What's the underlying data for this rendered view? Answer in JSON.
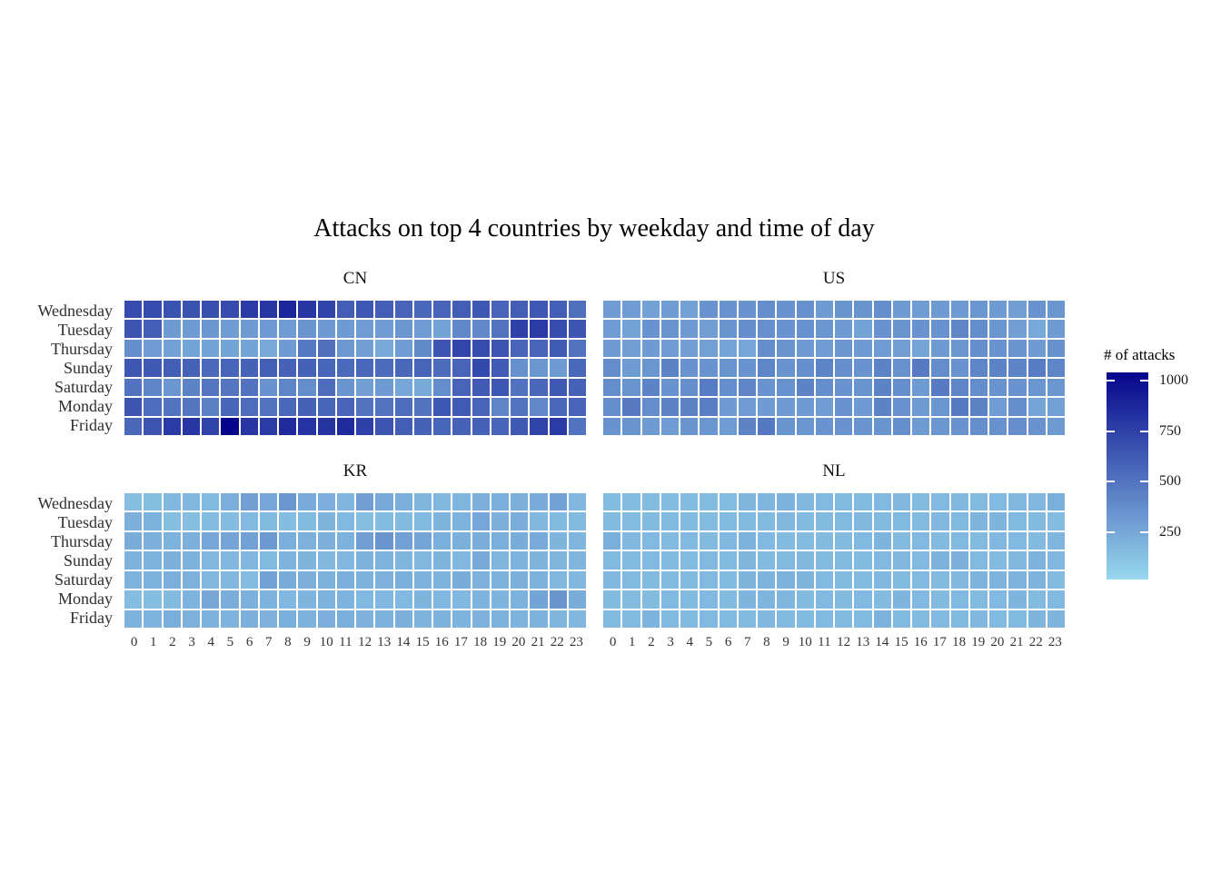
{
  "title": "Attacks on top 4 countries by weekday and time of day",
  "chart_data": {
    "type": "heatmap",
    "title": "Attacks on top 4 countries by weekday and time of day",
    "rows": [
      "Wednesday",
      "Tuesday",
      "Thursday",
      "Sunday",
      "Saturday",
      "Monday",
      "Friday"
    ],
    "columns": [
      "0",
      "1",
      "2",
      "3",
      "4",
      "5",
      "6",
      "7",
      "8",
      "9",
      "10",
      "11",
      "12",
      "13",
      "14",
      "15",
      "16",
      "17",
      "18",
      "19",
      "20",
      "21",
      "22",
      "23"
    ],
    "legend": {
      "title": "# of attacks",
      "ticks": [
        1000,
        750,
        500,
        250
      ],
      "domain_min": 15,
      "domain_max": 1040,
      "low_color": "#98D8EE",
      "high_color": "#05058C"
    },
    "grid_line_color": "#FFFFFF",
    "facets": [
      {
        "label": "CN",
        "values": [
          [
            700,
            690,
            660,
            660,
            680,
            700,
            780,
            800,
            880,
            800,
            740,
            610,
            640,
            610,
            580,
            560,
            580,
            610,
            640,
            580,
            610,
            640,
            610,
            520
          ],
          [
            650,
            610,
            310,
            310,
            330,
            300,
            310,
            310,
            300,
            340,
            320,
            310,
            300,
            300,
            330,
            300,
            270,
            400,
            400,
            500,
            750,
            780,
            690,
            650
          ],
          [
            370,
            300,
            280,
            270,
            270,
            270,
            270,
            250,
            310,
            480,
            520,
            320,
            290,
            240,
            300,
            390,
            650,
            730,
            690,
            650,
            580,
            580,
            620,
            500
          ],
          [
            640,
            630,
            610,
            590,
            550,
            570,
            590,
            610,
            590,
            590,
            570,
            550,
            560,
            545,
            560,
            580,
            545,
            580,
            710,
            620,
            360,
            330,
            310,
            560
          ],
          [
            500,
            420,
            330,
            430,
            490,
            490,
            500,
            350,
            420,
            380,
            540,
            340,
            290,
            310,
            260,
            240,
            380,
            580,
            620,
            640,
            510,
            560,
            630,
            590
          ],
          [
            650,
            540,
            500,
            490,
            440,
            570,
            540,
            500,
            560,
            590,
            570,
            580,
            500,
            500,
            540,
            500,
            640,
            620,
            580,
            420,
            500,
            400,
            560,
            580
          ],
          [
            560,
            650,
            780,
            800,
            740,
            1040,
            800,
            780,
            860,
            820,
            810,
            860,
            750,
            650,
            610,
            590,
            570,
            590,
            590,
            570,
            630,
            740,
            780,
            500
          ]
        ]
      },
      {
        "label": "US",
        "values": [
          [
            300,
            300,
            280,
            300,
            280,
            350,
            350,
            350,
            370,
            350,
            360,
            310,
            340,
            340,
            370,
            310,
            300,
            310,
            305,
            330,
            310,
            290,
            350,
            335
          ],
          [
            300,
            270,
            350,
            340,
            310,
            290,
            340,
            370,
            365,
            350,
            355,
            335,
            310,
            270,
            350,
            340,
            350,
            350,
            420,
            380,
            335,
            290,
            250,
            310
          ],
          [
            310,
            290,
            305,
            300,
            290,
            285,
            265,
            260,
            380,
            340,
            310,
            300,
            330,
            310,
            300,
            290,
            265,
            310,
            330,
            370,
            350,
            340,
            310,
            355
          ],
          [
            380,
            310,
            335,
            430,
            350,
            350,
            340,
            350,
            420,
            350,
            370,
            425,
            375,
            350,
            430,
            355,
            470,
            380,
            350,
            420,
            430,
            425,
            460,
            420
          ],
          [
            380,
            340,
            430,
            350,
            370,
            460,
            375,
            420,
            350,
            355,
            430,
            370,
            350,
            340,
            430,
            370,
            310,
            470,
            420,
            380,
            350,
            350,
            335,
            330
          ],
          [
            375,
            470,
            380,
            430,
            435,
            450,
            310,
            300,
            310,
            305,
            310,
            300,
            350,
            310,
            430,
            350,
            310,
            335,
            465,
            435,
            300,
            375,
            265,
            285
          ],
          [
            350,
            340,
            310,
            300,
            345,
            335,
            300,
            430,
            480,
            340,
            335,
            350,
            350,
            345,
            340,
            370,
            310,
            330,
            350,
            375,
            355,
            370,
            350,
            315
          ]
        ]
      },
      {
        "label": "KR",
        "values": [
          [
            140,
            140,
            170,
            170,
            165,
            220,
            290,
            260,
            330,
            235,
            220,
            180,
            290,
            250,
            220,
            185,
            175,
            180,
            210,
            215,
            210,
            230,
            280,
            170
          ],
          [
            210,
            200,
            140,
            140,
            150,
            150,
            165,
            160,
            150,
            160,
            190,
            165,
            140,
            145,
            160,
            165,
            190,
            195,
            260,
            210,
            225,
            170,
            165,
            160
          ],
          [
            230,
            210,
            200,
            210,
            260,
            265,
            280,
            320,
            215,
            205,
            210,
            200,
            290,
            340,
            285,
            265,
            215,
            210,
            225,
            215,
            230,
            235,
            190,
            185
          ],
          [
            200,
            195,
            210,
            200,
            175,
            170,
            175,
            165,
            195,
            190,
            170,
            175,
            200,
            195,
            180,
            175,
            190,
            175,
            240,
            185,
            195,
            190,
            180,
            185
          ],
          [
            195,
            200,
            220,
            205,
            175,
            170,
            155,
            280,
            230,
            210,
            200,
            220,
            200,
            205,
            215,
            200,
            195,
            230,
            205,
            200,
            210,
            200,
            175,
            170
          ],
          [
            150,
            145,
            160,
            195,
            255,
            225,
            205,
            195,
            170,
            190,
            200,
            195,
            165,
            170,
            165,
            190,
            175,
            170,
            195,
            190,
            200,
            270,
            340,
            230
          ],
          [
            200,
            195,
            215,
            205,
            200,
            195,
            210,
            205,
            215,
            200,
            220,
            215,
            205,
            200,
            210,
            195,
            200,
            195,
            205,
            200,
            195,
            200,
            180,
            175
          ]
        ]
      },
      {
        "label": "NL",
        "values": [
          [
            150,
            150,
            155,
            150,
            150,
            155,
            150,
            180,
            185,
            200,
            175,
            165,
            165,
            160,
            165,
            170,
            160,
            165,
            170,
            160,
            165,
            170,
            175,
            215
          ],
          [
            160,
            155,
            160,
            165,
            160,
            155,
            160,
            165,
            160,
            170,
            165,
            160,
            165,
            170,
            160,
            165,
            160,
            170,
            165,
            190,
            190,
            165,
            160,
            155
          ],
          [
            215,
            170,
            165,
            160,
            165,
            160,
            170,
            200,
            165,
            160,
            155,
            160,
            160,
            165,
            190,
            160,
            165,
            160,
            165,
            160,
            170,
            165,
            160,
            185
          ],
          [
            165,
            160,
            165,
            160,
            155,
            165,
            160,
            185,
            160,
            165,
            170,
            160,
            165,
            160,
            165,
            170,
            165,
            200,
            210,
            165,
            160,
            170,
            200,
            175
          ],
          [
            170,
            165,
            160,
            165,
            160,
            165,
            160,
            190,
            195,
            200,
            190,
            165,
            160,
            165,
            170,
            160,
            165,
            160,
            170,
            195,
            195,
            195,
            195,
            160
          ],
          [
            160,
            155,
            160,
            165,
            160,
            165,
            160,
            190,
            190,
            185,
            160,
            165,
            160,
            165,
            160,
            190,
            165,
            160,
            165,
            160,
            165,
            190,
            160,
            165
          ],
          [
            165,
            160,
            195,
            165,
            160,
            165,
            160,
            165,
            170,
            165,
            160,
            165,
            160,
            165,
            200,
            165,
            160,
            165,
            160,
            170,
            165,
            160,
            190,
            190
          ]
        ]
      }
    ]
  }
}
